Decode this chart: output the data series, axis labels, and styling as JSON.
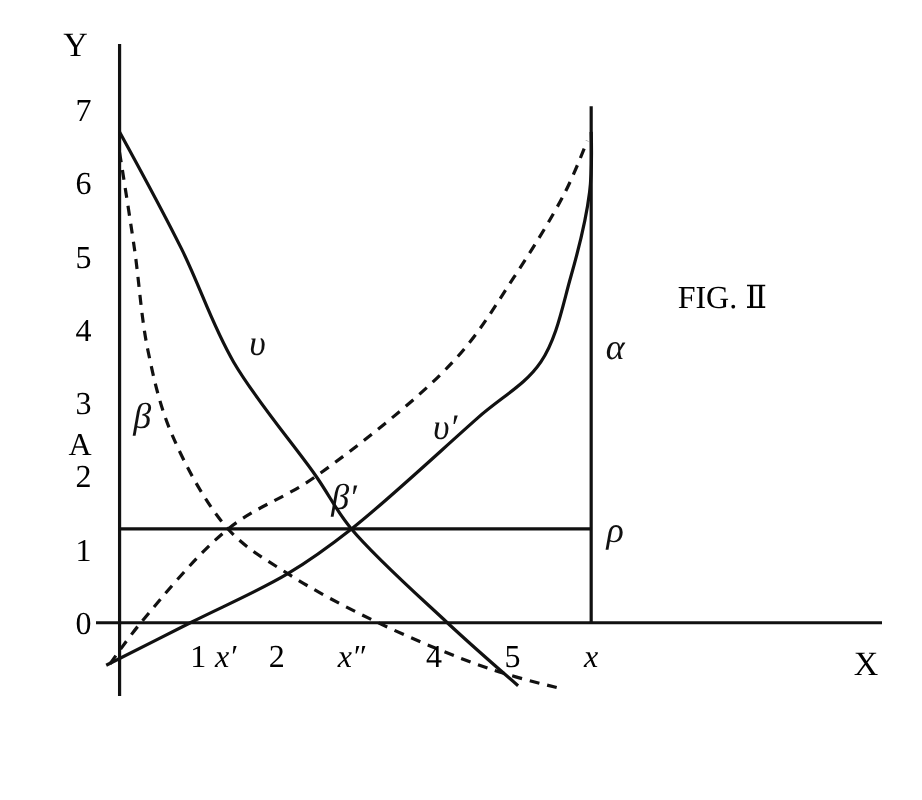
{
  "chart_data": {
    "type": "line",
    "xlabel": "X",
    "ylabel": "Y",
    "xlim": [
      -0.3,
      9.7
    ],
    "ylim": [
      -1,
      7.9
    ],
    "xticks": [
      1,
      {
        "value": 1.35,
        "label": "x′"
      },
      2,
      {
        "value": 2.95,
        "label": "x″"
      },
      4,
      5,
      {
        "value": 6,
        "label": "x"
      }
    ],
    "yticks": [
      0,
      1,
      2,
      {
        "value": 2.44,
        "label": "A"
      },
      3,
      4,
      5,
      6,
      7
    ],
    "grid": false,
    "marker": "none",
    "series": [
      {
        "name": "υ",
        "color": "#111111",
        "line_style": "solid",
        "x": [
          0,
          0.79,
          1.45,
          2.5,
          2.95,
          4.17,
          5.07
        ],
        "values": [
          6.7,
          5.1,
          3.56,
          2.0,
          1.28,
          0,
          -0.86
        ]
      },
      {
        "name": "υ′",
        "color": "#111111",
        "line_style": "solid",
        "x": [
          -0.17,
          0.9,
          2.14,
          2.95,
          4.55,
          5.36,
          5.74,
          5.98,
          6.0
        ],
        "values": [
          -0.58,
          0,
          0.67,
          1.28,
          2.79,
          3.56,
          4.72,
          5.88,
          6.7
        ]
      },
      {
        "name": "β",
        "color": "#111111",
        "line_style": "dashed",
        "x": [
          0,
          0.19,
          0.36,
          0.67,
          1.38,
          2.14,
          3.29,
          4.71,
          5.62
        ],
        "values": [
          6.42,
          5.1,
          3.72,
          2.56,
          1.28,
          0.67,
          0,
          -0.63,
          -0.9
        ]
      },
      {
        "name": "β′",
        "color": "#111111",
        "line_style": "dashed",
        "x": [
          -0.12,
          0.27,
          1.38,
          2.5,
          4.24,
          5.02,
          5.67,
          5.95
        ],
        "values": [
          -0.56,
          0,
          1.28,
          2.0,
          3.56,
          4.72,
          5.88,
          6.58
        ]
      },
      {
        "name": "α",
        "color": "#111111",
        "line_style": "solid",
        "x": [
          6,
          6
        ],
        "values": [
          0,
          7.05
        ]
      },
      {
        "name": "ρ",
        "color": "#111111",
        "line_style": "solid",
        "x": [
          0,
          6
        ],
        "values": [
          1.28,
          1.28
        ]
      }
    ],
    "annotations": [
      "FIG. Ⅱ"
    ]
  }
}
